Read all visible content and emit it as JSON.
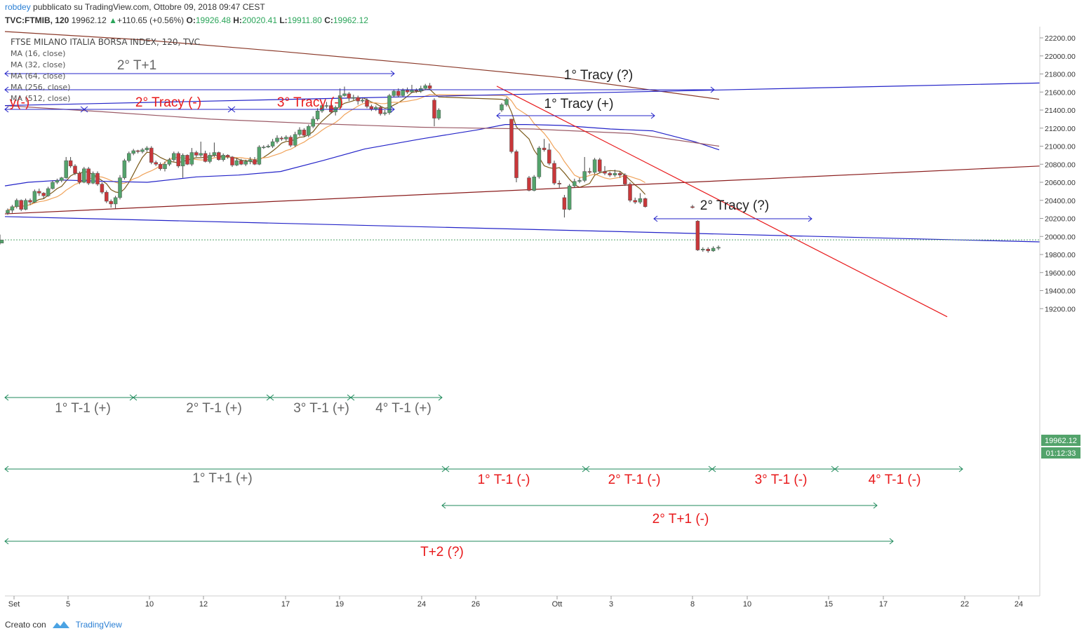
{
  "header": {
    "author": "robdey",
    "published": "pubblicato su TradingView.com, Ottobre 09, 2018 09:47 CEST",
    "symbol": "TVC:FTMIB, 120",
    "last": "19962.12",
    "arrow": "▲",
    "change": "+110.65 (+0.56%)",
    "o_label": "O:",
    "o": "19926.48",
    "h_label": "H:",
    "h": "20020.41",
    "l_label": "L:",
    "l": "19911.80",
    "c_label": "C:",
    "c": "19962.12"
  },
  "indicators": {
    "title": "FTSE MILANO ITALIA BORSA INDEX, 120, TVC",
    "ma": [
      "MA (16, close)",
      "MA (32, close)",
      "MA (64, close)",
      "MA (256, close)",
      "MA (512, close)"
    ]
  },
  "price_tag": {
    "price": "19962.12",
    "countdown": "01:12:33"
  },
  "footer": {
    "created_with": "Creato con",
    "brand": "TradingView"
  },
  "colors": {
    "up": "#53a36b",
    "down": "#c9373a",
    "blue": "#2323c8",
    "darkred": "#8a1c1c",
    "green": "#1f8a5b",
    "red_annot": "#e8191b",
    "grey_annot": "#666666",
    "ma16": "#7a5a1a",
    "ma32": "#f0a35a",
    "ma256": "#9b5a66",
    "ma512": "#8b3a2a"
  },
  "chart_data": {
    "type": "candlestick",
    "title": "FTSE MILANO ITALIA BORSA INDEX, 120, TVC",
    "timeframe": "120",
    "y_axis": {
      "ticks": [
        19200,
        19400,
        19600,
        19800,
        20000,
        20200,
        20400,
        20600,
        20800,
        21000,
        21200,
        21400,
        21600,
        21800,
        22000,
        22200
      ],
      "labels": [
        "19200.00",
        "19400.00",
        "19600.00",
        "19800.00",
        "20000.00",
        "20200.00",
        "20400.00",
        "20600.00",
        "20800.00",
        "21000.00",
        "21200.00",
        "21400.00",
        "21600.00",
        "21800.00",
        "22000.00",
        "22200.00"
      ],
      "range": [
        19090,
        22270
      ]
    },
    "x_axis": {
      "labels": [
        "Set",
        "5",
        "10",
        "12",
        "17",
        "19",
        "24",
        "26",
        "Ott",
        "3",
        "8",
        "10",
        "15",
        "17",
        "22",
        "24"
      ]
    },
    "candles": [
      [
        20260,
        20290,
        20240,
        20310
      ],
      [
        20290,
        20330,
        20260,
        20350
      ],
      [
        20330,
        20400,
        20310,
        20420
      ],
      [
        20400,
        20300,
        20280,
        20410
      ],
      [
        20300,
        20400,
        20290,
        20420
      ],
      [
        20400,
        20380,
        20350,
        20420
      ],
      [
        20380,
        20500,
        20370,
        20520
      ],
      [
        20500,
        20480,
        20450,
        20530
      ],
      [
        20480,
        20450,
        20420,
        20490
      ],
      [
        20450,
        20530,
        20440,
        20550
      ],
      [
        20530,
        20600,
        20520,
        20620
      ],
      [
        20600,
        20620,
        20580,
        20640
      ],
      [
        20620,
        20650,
        20600,
        20660
      ],
      [
        20650,
        20840,
        20640,
        20880
      ],
      [
        20840,
        20780,
        20760,
        20880
      ],
      [
        20780,
        20700,
        20680,
        20800
      ],
      [
        20700,
        20600,
        20580,
        20720
      ],
      [
        20600,
        20750,
        20590,
        20770
      ],
      [
        20750,
        20590,
        20570,
        20770
      ],
      [
        20590,
        20700,
        20580,
        20720
      ],
      [
        20700,
        20580,
        20560,
        20720
      ],
      [
        20580,
        20490,
        20470,
        20600
      ],
      [
        20490,
        20390,
        20370,
        20510
      ],
      [
        20390,
        20360,
        20320,
        20410
      ],
      [
        20360,
        20430,
        20310,
        20450
      ],
      [
        20430,
        20650,
        20410,
        20680
      ],
      [
        20650,
        20840,
        20630,
        20860
      ],
      [
        20840,
        20920,
        20820,
        20940
      ],
      [
        20920,
        20950,
        20900,
        20970
      ],
      [
        20950,
        20940,
        20920,
        20960
      ],
      [
        20940,
        20960,
        20920,
        20980
      ],
      [
        20960,
        20980,
        20940,
        21000
      ],
      [
        20980,
        20820,
        20800,
        21000
      ],
      [
        20820,
        20800,
        20780,
        20840
      ],
      [
        20800,
        20750,
        20730,
        20820
      ],
      [
        20750,
        20800,
        20720,
        20830
      ],
      [
        20800,
        20850,
        20780,
        20870
      ],
      [
        20850,
        20920,
        20830,
        20940
      ],
      [
        20920,
        20780,
        20760,
        20940
      ],
      [
        20780,
        20900,
        20650,
        20920
      ],
      [
        20900,
        20800,
        20790,
        20910
      ],
      [
        20800,
        20930,
        20780,
        20980
      ],
      [
        20930,
        20900,
        20880,
        20950
      ],
      [
        20900,
        20920,
        20880,
        21050
      ],
      [
        20920,
        20830,
        20820,
        20950
      ],
      [
        20830,
        20900,
        20810,
        20930
      ],
      [
        20900,
        20930,
        20880,
        21040
      ],
      [
        20930,
        20850,
        20840,
        20940
      ],
      [
        20850,
        20900,
        20830,
        20920
      ],
      [
        20900,
        20880,
        20860,
        20910
      ],
      [
        20880,
        20790,
        20770,
        20890
      ],
      [
        20790,
        20840,
        20780,
        20870
      ],
      [
        20840,
        20800,
        20790,
        20860
      ],
      [
        20800,
        20830,
        20780,
        20850
      ],
      [
        20830,
        20850,
        20800,
        20880
      ],
      [
        20850,
        20800,
        20790,
        20880
      ],
      [
        20800,
        20990,
        20790,
        21010
      ],
      [
        20990,
        20990,
        20970,
        21010
      ],
      [
        20990,
        21000,
        20980,
        21020
      ],
      [
        21000,
        21050,
        20980,
        21080
      ],
      [
        21050,
        21090,
        21030,
        21120
      ],
      [
        21090,
        21080,
        21060,
        21110
      ],
      [
        21080,
        21100,
        21060,
        21120
      ],
      [
        21100,
        21010,
        20990,
        21120
      ],
      [
        21010,
        21130,
        20990,
        21160
      ],
      [
        21130,
        21180,
        21110,
        21210
      ],
      [
        21180,
        21120,
        21100,
        21200
      ],
      [
        21120,
        21220,
        21100,
        21240
      ],
      [
        21220,
        21300,
        21200,
        21330
      ],
      [
        21300,
        21390,
        21280,
        21420
      ],
      [
        21390,
        21450,
        21370,
        21480
      ],
      [
        21450,
        21450,
        21420,
        21490
      ],
      [
        21450,
        21380,
        21360,
        21470
      ],
      [
        21380,
        21430,
        21340,
        21450
      ],
      [
        21430,
        21560,
        21410,
        21640
      ],
      [
        21560,
        21580,
        21550,
        21660
      ],
      [
        21580,
        21530,
        21500,
        21600
      ],
      [
        21530,
        21540,
        21510,
        21570
      ],
      [
        21540,
        21500,
        21460,
        21560
      ],
      [
        21500,
        21510,
        21480,
        21530
      ],
      [
        21510,
        21440,
        21420,
        21530
      ],
      [
        21440,
        21410,
        21390,
        21460
      ],
      [
        21410,
        21430,
        21390,
        21450
      ],
      [
        21430,
        21360,
        21340,
        21450
      ],
      [
        21360,
        21370,
        21340,
        21400
      ],
      [
        21370,
        21560,
        21350,
        21580
      ],
      [
        21560,
        21610,
        21540,
        21630
      ],
      [
        21610,
        21560,
        21540,
        21640
      ],
      [
        21560,
        21620,
        21550,
        21640
      ],
      [
        21620,
        21600,
        21580,
        21650
      ],
      [
        21600,
        21620,
        21590,
        21680
      ],
      [
        21620,
        21610,
        21590,
        21640
      ],
      [
        21610,
        21640,
        21590,
        21670
      ],
      [
        21640,
        21670,
        21620,
        21690
      ],
      [
        21670,
        21640,
        21620,
        21700
      ],
      [
        21510,
        21310,
        21220,
        21530
      ],
      [
        21310,
        21400,
        21290,
        21420
      ],
      [
        21400,
        21460,
        21380,
        21480
      ],
      [
        21460,
        21520,
        21440,
        21540
      ],
      [
        21300,
        20940,
        20920,
        21300
      ],
      [
        20940,
        20650,
        20600,
        20960
      ],
      [
        20650,
        20510,
        20500,
        20670
      ],
      [
        20510,
        20660,
        20500,
        20680
      ],
      [
        20660,
        20980,
        20640,
        21000
      ],
      [
        20980,
        20960,
        20940,
        21080
      ],
      [
        20960,
        20810,
        20790,
        21030
      ],
      [
        20810,
        20590,
        20570,
        20840
      ],
      [
        20590,
        20580,
        20540,
        20620
      ],
      [
        20430,
        20300,
        20210,
        20460
      ],
      [
        20300,
        20560,
        20290,
        20580
      ],
      [
        20560,
        20610,
        20540,
        20640
      ],
      [
        20610,
        20620,
        20590,
        20650
      ],
      [
        20620,
        20720,
        20600,
        20880
      ],
      [
        20720,
        20710,
        20690,
        20760
      ],
      [
        20710,
        20850,
        20690,
        20870
      ],
      [
        20850,
        20720,
        20700,
        20870
      ],
      [
        20720,
        20700,
        20680,
        20780
      ],
      [
        20700,
        20680,
        20660,
        20720
      ],
      [
        20680,
        20700,
        20660,
        20740
      ],
      [
        20700,
        20680,
        20650,
        20720
      ],
      [
        20680,
        20580,
        20560,
        20700
      ],
      [
        20580,
        20400,
        20380,
        20600
      ],
      [
        20400,
        20380,
        20360,
        20430
      ],
      [
        20380,
        20420,
        20360,
        20480
      ],
      [
        20420,
        20330,
        20320,
        20430
      ],
      [
        20330,
        20320,
        20310,
        20350
      ],
      [
        20170,
        19850,
        19840,
        20180
      ],
      [
        19850,
        19860,
        19830,
        19880
      ],
      [
        19860,
        19840,
        19820,
        19880
      ],
      [
        19840,
        19870,
        19830,
        19890
      ],
      [
        19870,
        19880,
        19850,
        19900
      ],
      [
        19926,
        19962,
        19911,
        20020
      ]
    ],
    "ma16_labels": [
      "MA (16, close)"
    ],
    "trendlines": [
      "blue upper",
      "blue lower",
      "darkred rising",
      "red falling",
      "ma256",
      "ma512"
    ],
    "annotations": {
      "tracy_top": [
        "2° T+1",
        "1° Tracy (?)",
        "y(-)",
        "2° Tracy (-)",
        "3° Tracy (-)",
        "1° Tracy (+)",
        "2° Tracy (?)"
      ],
      "grey_cycles": [
        "1° T-1 (+)",
        "2° T-1 (+)",
        "3° T-1 (+)",
        "4° T-1 (+)",
        "1° T+1 (+)"
      ],
      "red_cycles": [
        "1° T-1 (-)",
        "2° T-1 (-)",
        "3° T-1 (-)",
        "4° T-1 (-)",
        "2° T+1 (-)",
        "T+2 (?)"
      ]
    }
  }
}
